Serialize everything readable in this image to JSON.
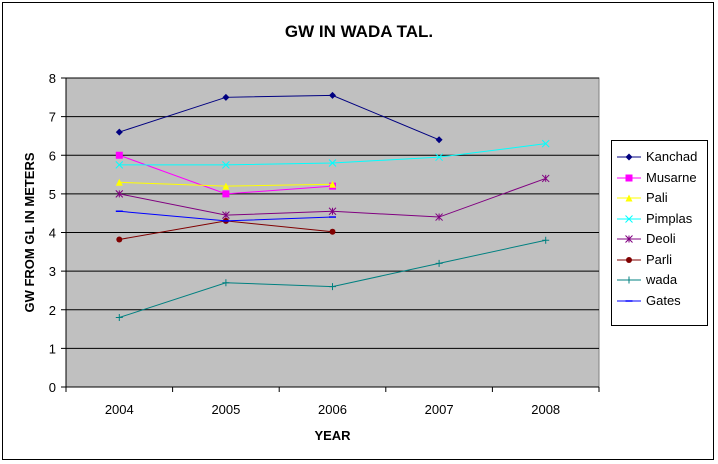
{
  "chart_data": {
    "type": "line",
    "title": "GW IN WADA TAL.",
    "xlabel": "YEAR",
    "ylabel": "GW FROM GL IN METERS",
    "categories": [
      "2004",
      "2005",
      "2006",
      "2007",
      "2008"
    ],
    "ylim": [
      0,
      8
    ],
    "yticks": [
      "0",
      "1",
      "2",
      "3",
      "4",
      "5",
      "6",
      "7",
      "8"
    ],
    "grid": true,
    "legend_position": "right",
    "series": [
      {
        "name": "Kanchad",
        "values": [
          6.6,
          7.5,
          7.55,
          6.4,
          null
        ],
        "color": "#000080",
        "marker": "diamond"
      },
      {
        "name": "Musarne",
        "values": [
          6.0,
          5.0,
          5.2,
          null,
          null
        ],
        "color": "#ff00ff",
        "marker": "square"
      },
      {
        "name": "Pali",
        "values": [
          5.3,
          5.2,
          5.25,
          null,
          null
        ],
        "color": "#ffff00",
        "marker": "triangle"
      },
      {
        "name": "Pimplas",
        "values": [
          5.75,
          5.75,
          5.8,
          5.95,
          6.3
        ],
        "color": "#00ffff",
        "marker": "x"
      },
      {
        "name": "Deoli",
        "values": [
          5.0,
          4.45,
          4.55,
          4.4,
          5.4
        ],
        "color": "#800080",
        "marker": "star"
      },
      {
        "name": "Parli",
        "values": [
          3.82,
          4.3,
          4.02,
          null,
          null
        ],
        "color": "#800000",
        "marker": "circle"
      },
      {
        "name": "wada",
        "values": [
          1.8,
          2.7,
          2.6,
          3.2,
          3.8
        ],
        "color": "#008080",
        "marker": "plus"
      },
      {
        "name": "Gates",
        "values": [
          4.55,
          4.3,
          4.4,
          null,
          null
        ],
        "color": "#0000ff",
        "marker": "dash"
      }
    ]
  }
}
